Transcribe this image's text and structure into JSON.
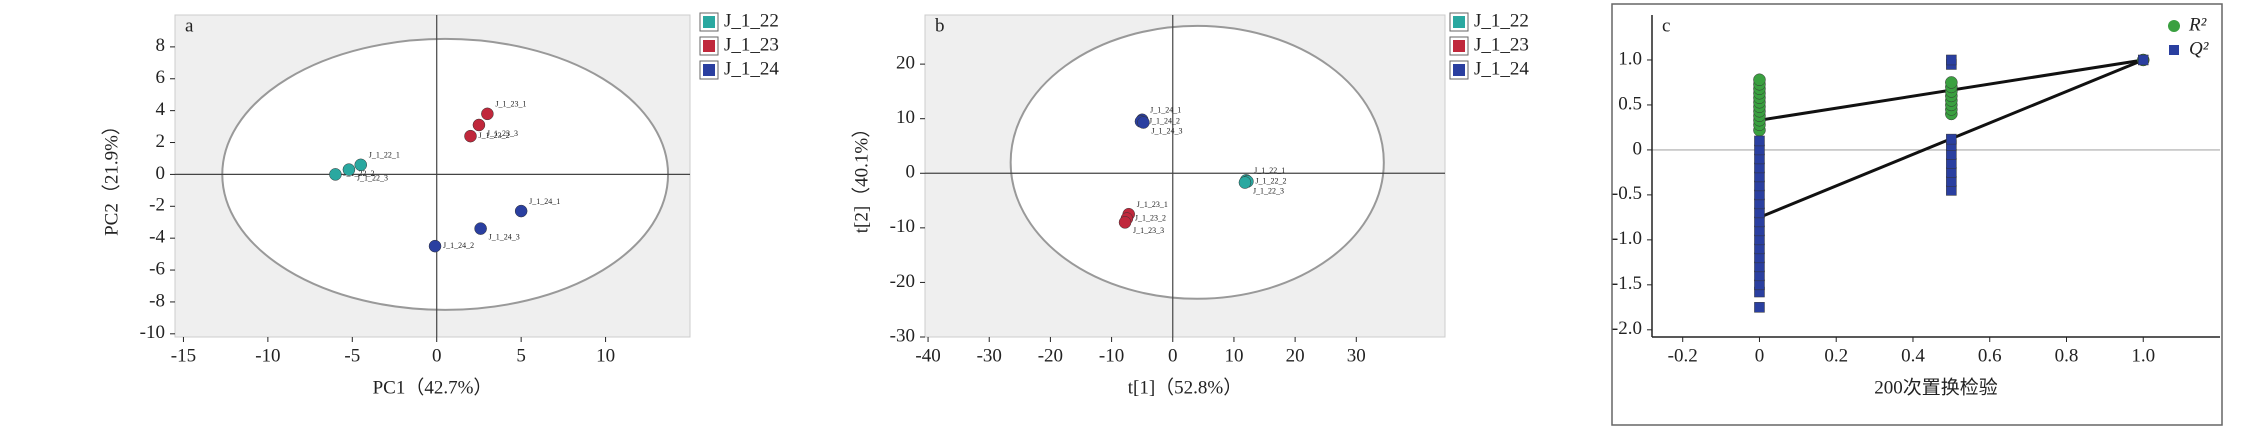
{
  "chart_data": [
    {
      "type": "scatter",
      "panel_label": "a",
      "x_label": "PC1（42.7%）",
      "y_label": "PC2（21.9%）",
      "xlim": [
        -15.5,
        15
      ],
      "ylim": [
        -10.2,
        10
      ],
      "xticks": [
        -15,
        -10,
        -5,
        0,
        5,
        10
      ],
      "yticks": [
        -10,
        -8,
        -6,
        -4,
        -2,
        0,
        2,
        4,
        6,
        8
      ],
      "ellipse": {
        "cx": 0.5,
        "cy": 0,
        "rx": 13.2,
        "ry": 8.5
      },
      "series": [
        {
          "name": "J_1_22",
          "color": "#2aa8a0",
          "x": [
            -4.5,
            -6,
            -5.2
          ],
          "values": [
            0.6,
            0,
            0.3
          ],
          "labels": [
            "J_1_22_1",
            "J_1_22_2",
            "J_1_22_3"
          ]
        },
        {
          "name": "J_1_23",
          "color": "#c0283c",
          "x": [
            3,
            2,
            2.5
          ],
          "values": [
            3.8,
            2.4,
            3.1
          ],
          "labels": [
            "J_1_23_1",
            "J_1_23_2",
            "J_1_23_3"
          ]
        },
        {
          "name": "J_1_24",
          "color": "#2a3fa0",
          "x": [
            5,
            -0.1,
            2.6
          ],
          "values": [
            -2.3,
            -4.5,
            -3.4
          ],
          "labels": [
            "J_1_24_1",
            "J_1_24_2",
            "J_1_24_3"
          ]
        }
      ]
    },
    {
      "type": "scatter",
      "panel_label": "b",
      "x_label": "t[1]（52.8%）",
      "y_label": "t[2]（40.1%）",
      "xlim": [
        -40.5,
        44.5
      ],
      "ylim": [
        -30,
        29
      ],
      "xticks": [
        -40,
        -30,
        -20,
        -10,
        0,
        10,
        20,
        30
      ],
      "yticks": [
        -30,
        -20,
        -10,
        0,
        10,
        20
      ],
      "ellipse": {
        "cx": 4,
        "cy": 2,
        "rx": 30.5,
        "ry": 25
      },
      "series": [
        {
          "name": "J_1_22",
          "color": "#2aa8a0",
          "x": [
            12,
            12.2,
            11.8
          ],
          "values": [
            -1.3,
            -1.5,
            -1.7
          ],
          "labels": [
            "J_1_22_1",
            "J_1_22_2",
            "J_1_22_3"
          ]
        },
        {
          "name": "J_1_23",
          "color": "#c0283c",
          "x": [
            -7.2,
            -7.5,
            -7.8
          ],
          "values": [
            -7.5,
            -8.3,
            -9
          ],
          "labels": [
            "J_1_23_1",
            "J_1_23_2",
            "J_1_23_3"
          ]
        },
        {
          "name": "J_1_24",
          "color": "#2a3fa0",
          "x": [
            -5,
            -5.2,
            -4.8
          ],
          "values": [
            9.8,
            9.5,
            9.3
          ],
          "labels": [
            "J_1_24_1",
            "J_1_24_2",
            "J_1_24_3"
          ]
        }
      ]
    },
    {
      "type": "scatter",
      "panel_label": "c",
      "x_label": "200次置换检验",
      "xlim": [
        -0.28,
        1.2
      ],
      "ylim": [
        -2.08,
        1.5
      ],
      "xticks": [
        -0.2,
        0,
        0.2,
        0.4,
        0.6,
        0.8,
        {
          "value": 1,
          "label": "1.0"
        }
      ],
      "yticks": [
        {
          "value": -2,
          "label": "-2.0"
        },
        -1.5,
        {
          "value": -1,
          "label": "-1.0"
        },
        -0.5,
        0,
        0.5,
        {
          "value": 1,
          "label": "1.0"
        }
      ],
      "series": [
        {
          "name": "R²",
          "color": "#3aa040",
          "marker": "circle",
          "x": [
            0,
            0,
            0,
            0,
            0,
            0,
            0,
            0,
            0,
            0,
            0,
            0,
            0.5,
            0.5,
            0.5,
            0.5,
            0.5,
            0.5,
            0.5,
            0.5,
            1
          ],
          "values": [
            0.22,
            0.28,
            0.33,
            0.38,
            0.43,
            0.48,
            0.53,
            0.58,
            0.63,
            0.68,
            0.73,
            0.78,
            0.4,
            0.45,
            0.5,
            0.55,
            0.6,
            0.65,
            0.7,
            0.75,
            1
          ]
        },
        {
          "name": "Q²",
          "color": "#2a3fa0",
          "marker": "square",
          "x": [
            0,
            0,
            0,
            0,
            0,
            0,
            0,
            0,
            0,
            0,
            0,
            0,
            0,
            0,
            0,
            0,
            0,
            0,
            0,
            0.5,
            0.5,
            0.5,
            0.5,
            0.5,
            0.5,
            0.5,
            0.5,
            0.5,
            1
          ],
          "values": [
            -1.75,
            -1.58,
            -1.5,
            -1.4,
            -1.3,
            -1.2,
            -1.1,
            -1,
            -0.9,
            -0.8,
            -0.7,
            -0.6,
            -0.5,
            -0.4,
            -0.3,
            -0.2,
            -0.1,
            0,
            0.1,
            -0.45,
            -0.35,
            -0.25,
            -0.15,
            -0.05,
            0.05,
            0.12,
            0.95,
            1,
            1
          ]
        }
      ],
      "lines": [
        {
          "x": [
            0,
            1
          ],
          "values": [
            0.33,
            1
          ]
        },
        {
          "x": [
            0,
            1
          ],
          "values": [
            -0.75,
            1
          ]
        }
      ]
    }
  ]
}
